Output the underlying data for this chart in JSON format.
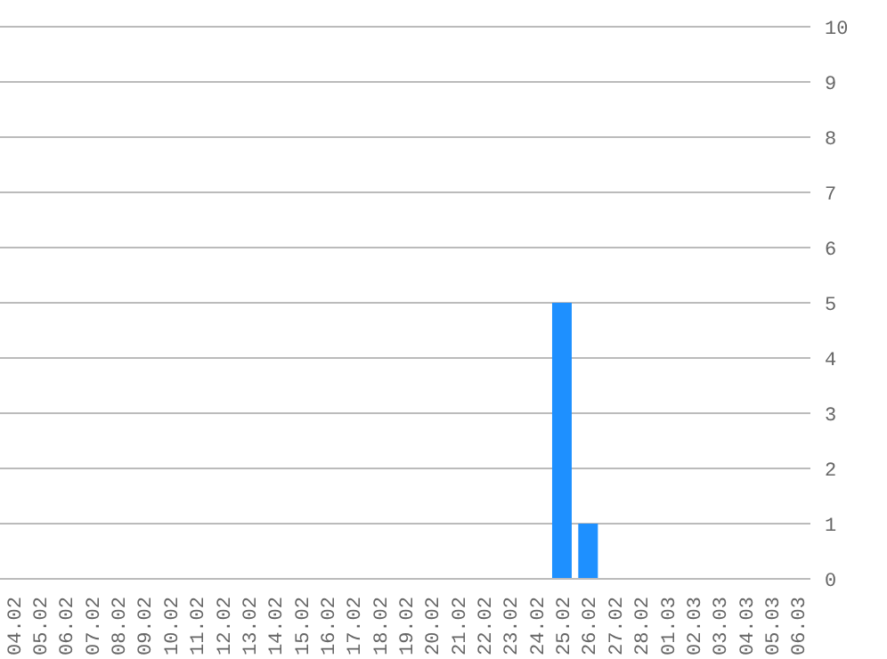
{
  "chart_data": {
    "type": "bar",
    "categories": [
      "04.02",
      "05.02",
      "06.02",
      "07.02",
      "08.02",
      "09.02",
      "10.02",
      "11.02",
      "12.02",
      "13.02",
      "14.02",
      "15.02",
      "16.02",
      "17.02",
      "18.02",
      "19.02",
      "20.02",
      "21.02",
      "22.02",
      "23.02",
      "24.02",
      "25.02",
      "26.02",
      "27.02",
      "28.02",
      "01.03",
      "02.03",
      "03.03",
      "04.03",
      "05.03",
      "06.03"
    ],
    "values": [
      0,
      0,
      0,
      0,
      0,
      0,
      0,
      0,
      0,
      0,
      0,
      0,
      0,
      0,
      0,
      0,
      0,
      0,
      0,
      0,
      0,
      5,
      1,
      0,
      0,
      0,
      0,
      0,
      0,
      0,
      0
    ],
    "color": "#1e90ff",
    "ylim": [
      0,
      10
    ],
    "yticks": [
      0,
      1,
      2,
      3,
      4,
      5,
      6,
      7,
      8,
      9,
      10
    ],
    "grid": "y"
  }
}
